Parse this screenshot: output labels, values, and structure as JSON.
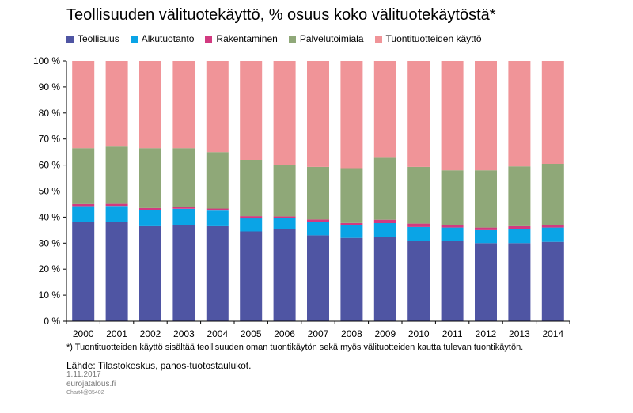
{
  "chart_data": {
    "type": "bar",
    "stacked": true,
    "title": "Teollisuuden välituotekäyttö,  % osuus koko välituotekäytöstä*",
    "categories": [
      "2000",
      "2001",
      "2002",
      "2003",
      "2004",
      "2005",
      "2006",
      "2007",
      "2008",
      "2009",
      "2010",
      "2011",
      "2012",
      "2013",
      "2014"
    ],
    "ylim": [
      0,
      100
    ],
    "yticks": [
      "0 %",
      "10 %",
      "20 %",
      "30 %",
      "40 %",
      "50 %",
      "60 %",
      "70 %",
      "80 %",
      "90 %",
      "100 %"
    ],
    "grid": false,
    "legend_position": "top",
    "series": [
      {
        "name": "Teollisuus",
        "color": "#4f55a3",
        "values": [
          38,
          38,
          36.5,
          37,
          36.5,
          34.5,
          35.5,
          33,
          32,
          32.5,
          31,
          31,
          30,
          30,
          30.5
        ]
      },
      {
        "name": "Alkutuotanto",
        "color": "#0aa4e6",
        "values": [
          6.2,
          6.3,
          6.2,
          6.2,
          6,
          5,
          4.2,
          5.2,
          4.8,
          5.2,
          5.2,
          5,
          5,
          5.5,
          5.5
        ]
      },
      {
        "name": "Rakentaminen",
        "color": "#d23a80",
        "values": [
          0.8,
          0.8,
          0.8,
          0.8,
          0.8,
          0.9,
          0.6,
          0.9,
          0.9,
          1.3,
          1.3,
          1,
          1,
          1,
          1
        ]
      },
      {
        "name": "Palvelutoimiala",
        "color": "#8fa878",
        "values": [
          21.5,
          22,
          23,
          22.5,
          21.7,
          21.6,
          19.7,
          20.2,
          21.1,
          23.8,
          21.8,
          21,
          22,
          23,
          23.5
        ]
      },
      {
        "name": "Tuontituotteiden käyttö",
        "color": "#f09498",
        "values": [
          33.5,
          32.9,
          33.5,
          33.5,
          35,
          38,
          40,
          40.7,
          41.2,
          37.2,
          40.7,
          42,
          42,
          40.5,
          39.5
        ]
      }
    ]
  },
  "footnote": "*) Tuontituotteiden käyttö sisältää teollisuuden oman tuontikäytön sekä myös välituotteiden kautta tulevan tuontikäytön.",
  "source": "Lähde: Tilastokeskus, panos-tuotostaulukot.",
  "date": "1.11.2017",
  "site": "eurojatalous.fi",
  "chart_id": "Chart4@35402"
}
